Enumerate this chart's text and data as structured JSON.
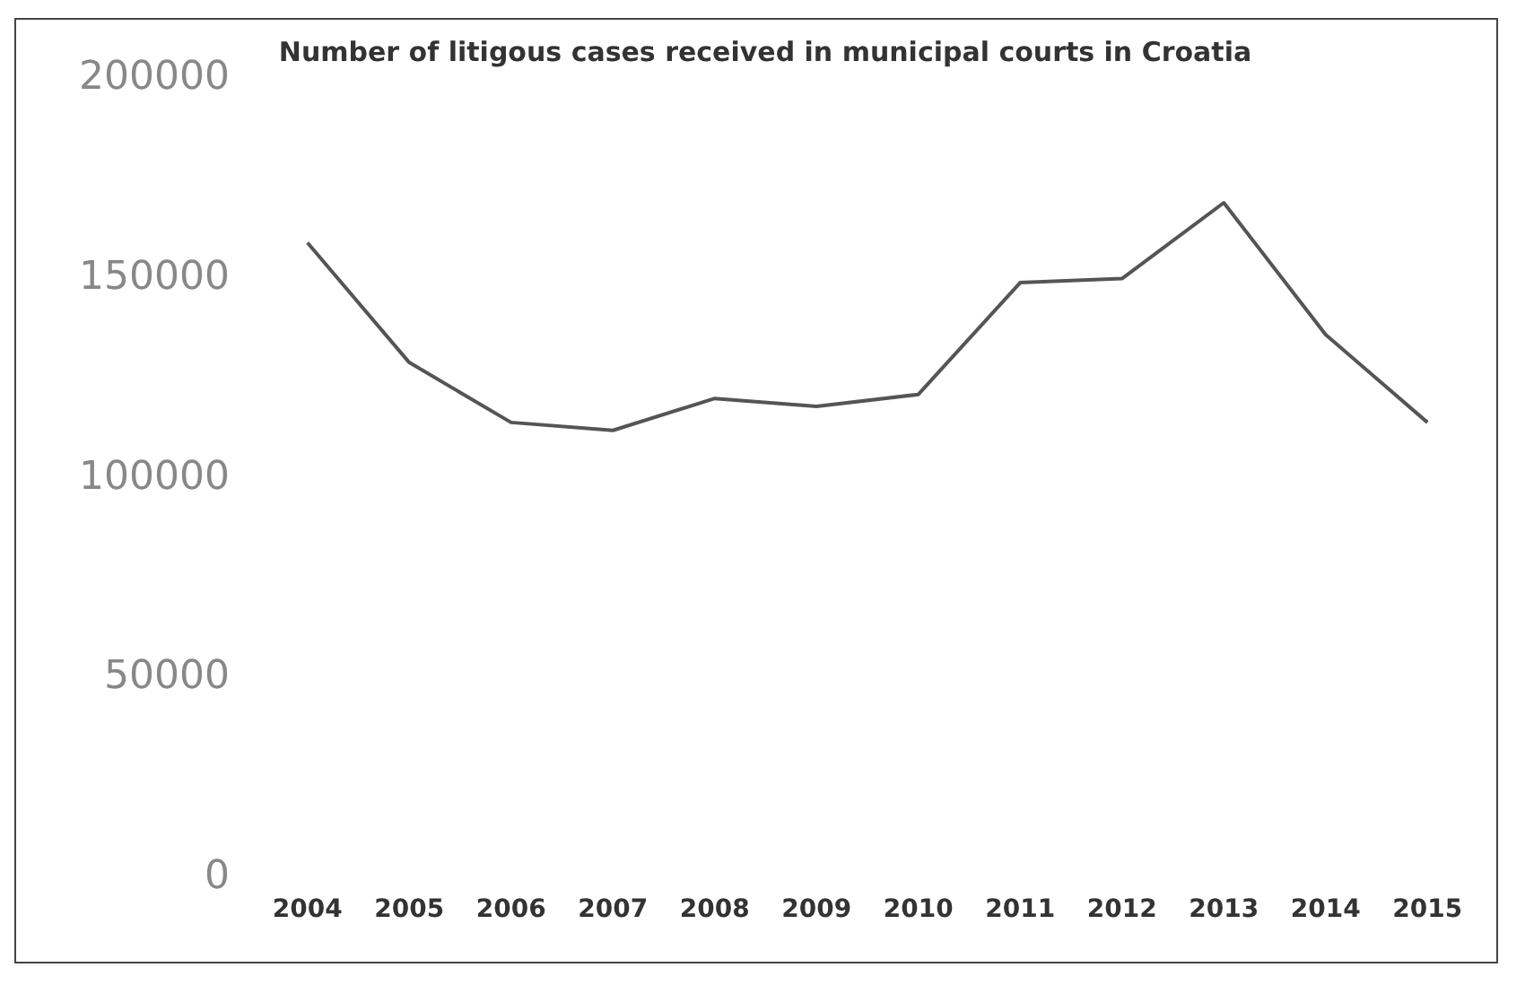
{
  "chart_data": {
    "type": "line",
    "title": "Number of litigous cases received in municipal courts in Croatia",
    "categories": [
      "2004",
      "2005",
      "2006",
      "2007",
      "2008",
      "2009",
      "2010",
      "2011",
      "2012",
      "2013",
      "2014",
      "2015"
    ],
    "series": [
      {
        "color": "#555555",
        "values": [
          159000,
          129000,
          114000,
          112000,
          120000,
          118000,
          121000,
          149000,
          150000,
          169000,
          136000,
          114000
        ]
      }
    ],
    "ylim": [
      0,
      200000
    ],
    "yticks": [
      0,
      50000,
      100000,
      150000,
      200000
    ],
    "grid": false,
    "legend": false,
    "marker": "none"
  }
}
